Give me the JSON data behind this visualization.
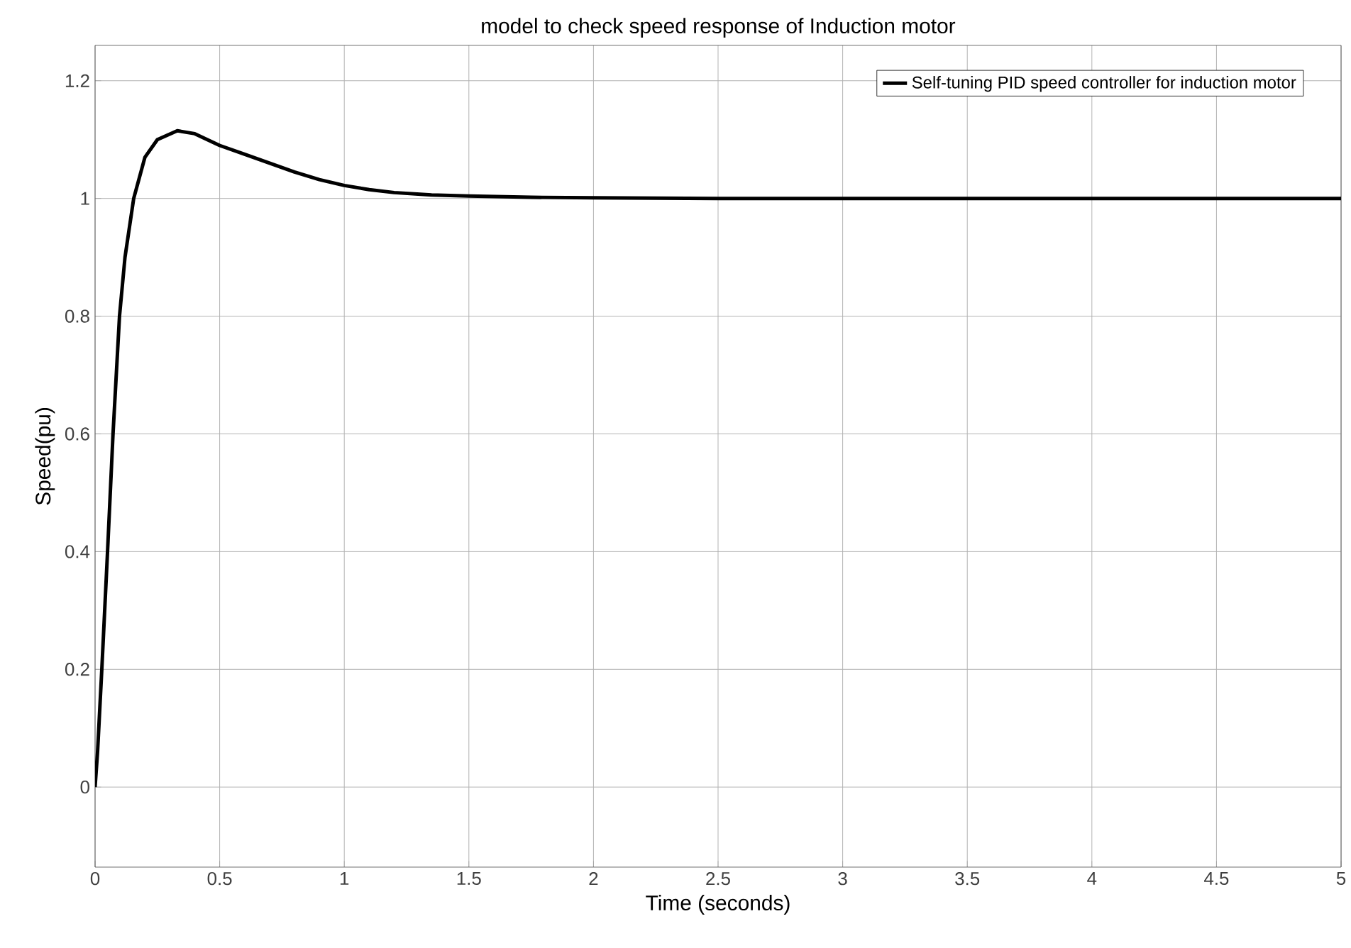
{
  "chart_data": {
    "type": "line",
    "title": "model to check speed response of Induction motor",
    "xlabel": "Time (seconds)",
    "ylabel": "Speed(pu)",
    "x": [
      0,
      0.01,
      0.027,
      0.05,
      0.072,
      0.098,
      0.12,
      0.155,
      0.2,
      0.25,
      0.33,
      0.4,
      0.45,
      0.5,
      0.6,
      0.7,
      0.8,
      0.9,
      1.0,
      1.1,
      1.2,
      1.35,
      1.5,
      1.75,
      2,
      2.5,
      3,
      3.5,
      4,
      4.5,
      5
    ],
    "series": [
      {
        "name": "Self-tuning PID speed controller for induction motor",
        "color": "#000000",
        "values": [
          0,
          0.06,
          0.2,
          0.4,
          0.6,
          0.8,
          0.9,
          1.0,
          1.07,
          1.1,
          1.115,
          1.11,
          1.1,
          1.09,
          1.075,
          1.06,
          1.045,
          1.032,
          1.022,
          1.015,
          1.01,
          1.006,
          1.004,
          1.002,
          1.001,
          1,
          1,
          1,
          1,
          1,
          1
        ]
      }
    ],
    "xlim": [
      0,
      5
    ],
    "ylim": [
      -0.136,
      1.26
    ],
    "xticks": [
      0,
      0.5,
      1,
      1.5,
      2,
      2.5,
      3,
      3.5,
      4,
      4.5,
      5
    ],
    "yticks": [
      0,
      0.2,
      0.4,
      0.6,
      0.8,
      1,
      1.2
    ],
    "grid": true,
    "legend": "top right",
    "marker": "none",
    "line_style": "solid"
  }
}
